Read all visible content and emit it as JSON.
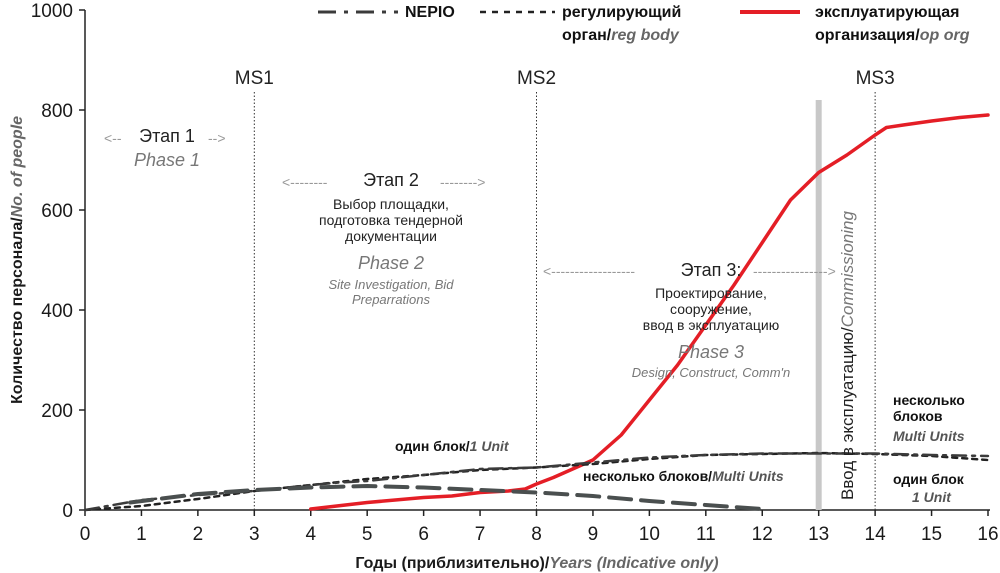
{
  "chart_data": {
    "type": "line",
    "title": "",
    "xlabel": "Годы (приблизительно)/",
    "xlabel_en": "Years (Indicative only)",
    "ylabel": "Количество персонала/",
    "ylabel_en": "No. of people",
    "xlim": [
      0,
      16
    ],
    "ylim": [
      0,
      1000
    ],
    "xticks": [
      0,
      1,
      2,
      3,
      4,
      5,
      6,
      7,
      8,
      9,
      10,
      11,
      12,
      13,
      14,
      15,
      16
    ],
    "yticks": [
      0,
      200,
      400,
      600,
      800,
      1000
    ],
    "grid": false,
    "series": [
      {
        "name": "эксплуатирующая организация/op org",
        "color": "#e41e26",
        "style": "solid",
        "x": [
          4,
          5,
          6,
          6.5,
          7,
          7.5,
          7.8,
          8,
          8.3,
          8.6,
          9,
          9.5,
          10,
          10.5,
          11,
          11.5,
          12,
          12.5,
          13,
          13.5,
          14,
          14.2,
          14.5,
          15,
          15.5,
          16
        ],
        "y": [
          2,
          15,
          25,
          28,
          35,
          38,
          42,
          52,
          65,
          80,
          100,
          150,
          220,
          290,
          370,
          450,
          535,
          620,
          675,
          710,
          750,
          765,
          770,
          778,
          785,
          790
        ]
      },
      {
        "name": "регулирующий орган/reg body",
        "color": "#222222",
        "style": "dotted",
        "x": [
          0,
          1,
          2,
          3,
          4,
          5,
          6,
          7,
          8,
          9,
          10,
          11,
          12,
          13,
          14,
          15,
          16
        ],
        "y": [
          0,
          8,
          22,
          38,
          50,
          62,
          70,
          80,
          85,
          92,
          102,
          110,
          112,
          114,
          112,
          108,
          100
        ]
      },
      {
        "name": "NEPIO (один блок/1 Unit)",
        "color": "#3b3b3b",
        "style": "dash-dot",
        "x": [
          0,
          0.5,
          1,
          2,
          3,
          4,
          4.5,
          5,
          6,
          7,
          8,
          8.5,
          9,
          10,
          11,
          12,
          13,
          14,
          15,
          16
        ],
        "y": [
          0,
          10,
          20,
          30,
          38,
          50,
          55,
          58,
          70,
          82,
          85,
          90,
          95,
          105,
          110,
          113,
          113,
          113,
          110,
          108
        ]
      },
      {
        "name": "NEPIO (несколько блоков/Multi Units)",
        "color": "#4a4f4f",
        "style": "long-dash",
        "x": [
          0.8,
          2,
          3,
          4,
          5,
          6,
          7,
          8,
          9,
          10,
          11,
          12
        ],
        "y": [
          15,
          32,
          40,
          45,
          48,
          45,
          40,
          35,
          28,
          18,
          10,
          2
        ]
      }
    ],
    "milestones": [
      {
        "label": "MS1",
        "x": 3
      },
      {
        "label": "MS2",
        "x": 8
      },
      {
        "label": "MS3",
        "x": 14
      }
    ],
    "commissioning_x": 13,
    "phases": [
      {
        "ru": "Этап 1",
        "en": "Phase 1",
        "x_from": 0.5,
        "x_to": 2.8
      },
      {
        "ru": "Этап 2",
        "en": "Phase 2",
        "x_from": 3.5,
        "x_to": 7.5
      },
      {
        "ru": "Этап 3:",
        "en": "Phase 3",
        "x_from": 8,
        "x_to": 13.8
      }
    ]
  },
  "legend": {
    "nepio": "NEPIO",
    "reg_ru": "регулирующий",
    "reg_ru2": "орган/",
    "reg_en": "reg body",
    "op_ru": "эксплуатирующая",
    "op_ru2": "организация/",
    "op_en": "op org"
  },
  "phases_text": {
    "p1_ru": "Этап 1",
    "p1_en": "Phase 1",
    "p2_ru": "Этап 2",
    "p2_desc_ru_1": "Выбор площадки,",
    "p2_desc_ru_2": "подготовка тендерной",
    "p2_desc_ru_3": "документации",
    "p2_en": "Phase 2",
    "p2_desc_en_1": "Site Investigation, Bid",
    "p2_desc_en_2": "Preparrations",
    "p3_ru": "Этап 3:",
    "p3_desc_ru_1": "Проектирование,",
    "p3_desc_ru_2": "сооружение,",
    "p3_desc_ru_3": "ввод в эксплуатацию",
    "p3_en": "Phase 3",
    "p3_desc_en": "Design, Construct, Comm'n"
  },
  "annotations": {
    "one_unit_ru": "один блок/",
    "one_unit_en": "1 Unit",
    "multi_ru": "несколько блоков/",
    "multi_en": "Multi Units",
    "commissioning_ru": "Ввод в эксплуатацию/",
    "commissioning_en": "Commissioning",
    "right_multi_ru_1": "несколько",
    "right_multi_ru_2": "блоков",
    "right_multi_en": "Multi Units",
    "right_one_ru": "один блок",
    "right_one_en": "1 Unit"
  }
}
